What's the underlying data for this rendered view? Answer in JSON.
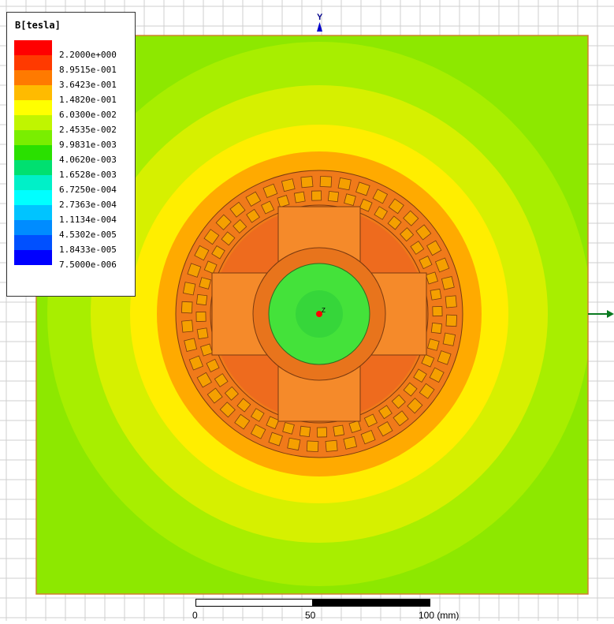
{
  "legend": {
    "title": "B[tesla]",
    "levels": [
      {
        "value": "2.2000e+000",
        "color": "#ff0000"
      },
      {
        "value": "8.9515e-001",
        "color": "#ff3a00"
      },
      {
        "value": "3.6423e-001",
        "color": "#ff7a00"
      },
      {
        "value": "1.4820e-001",
        "color": "#ffbb00"
      },
      {
        "value": "6.0300e-002",
        "color": "#ffff00"
      },
      {
        "value": "2.4535e-002",
        "color": "#c0f500"
      },
      {
        "value": "9.9831e-003",
        "color": "#7aee00"
      },
      {
        "value": "4.0620e-003",
        "color": "#2ae000"
      },
      {
        "value": "1.6528e-003",
        "color": "#00e070"
      },
      {
        "value": "6.7250e-004",
        "color": "#00f0c8"
      },
      {
        "value": "2.7363e-004",
        "color": "#00ffff"
      },
      {
        "value": "1.1134e-004",
        "color": "#00c4ff"
      },
      {
        "value": "4.5302e-005",
        "color": "#008cff"
      },
      {
        "value": "1.8433e-005",
        "color": "#0050ff"
      },
      {
        "value": "7.5000e-006",
        "color": "#0000ff"
      }
    ]
  },
  "axes": {
    "y_label": "Y",
    "z_label": "Z"
  },
  "scale_bar": {
    "labels": [
      "0",
      "50",
      "100 (mm)"
    ]
  },
  "colors": {
    "outer_field": "#8de800",
    "mid_field": "#d6f000",
    "inner_field": "#ffee00",
    "halo": "#ffaa00",
    "stator": "#f07a1a",
    "slot_fill": "#f5a000",
    "rotor_ring": "#e8741c",
    "pole": "#f58a2a",
    "shaft": "#44e23a",
    "grid": "#cfcfcf"
  }
}
